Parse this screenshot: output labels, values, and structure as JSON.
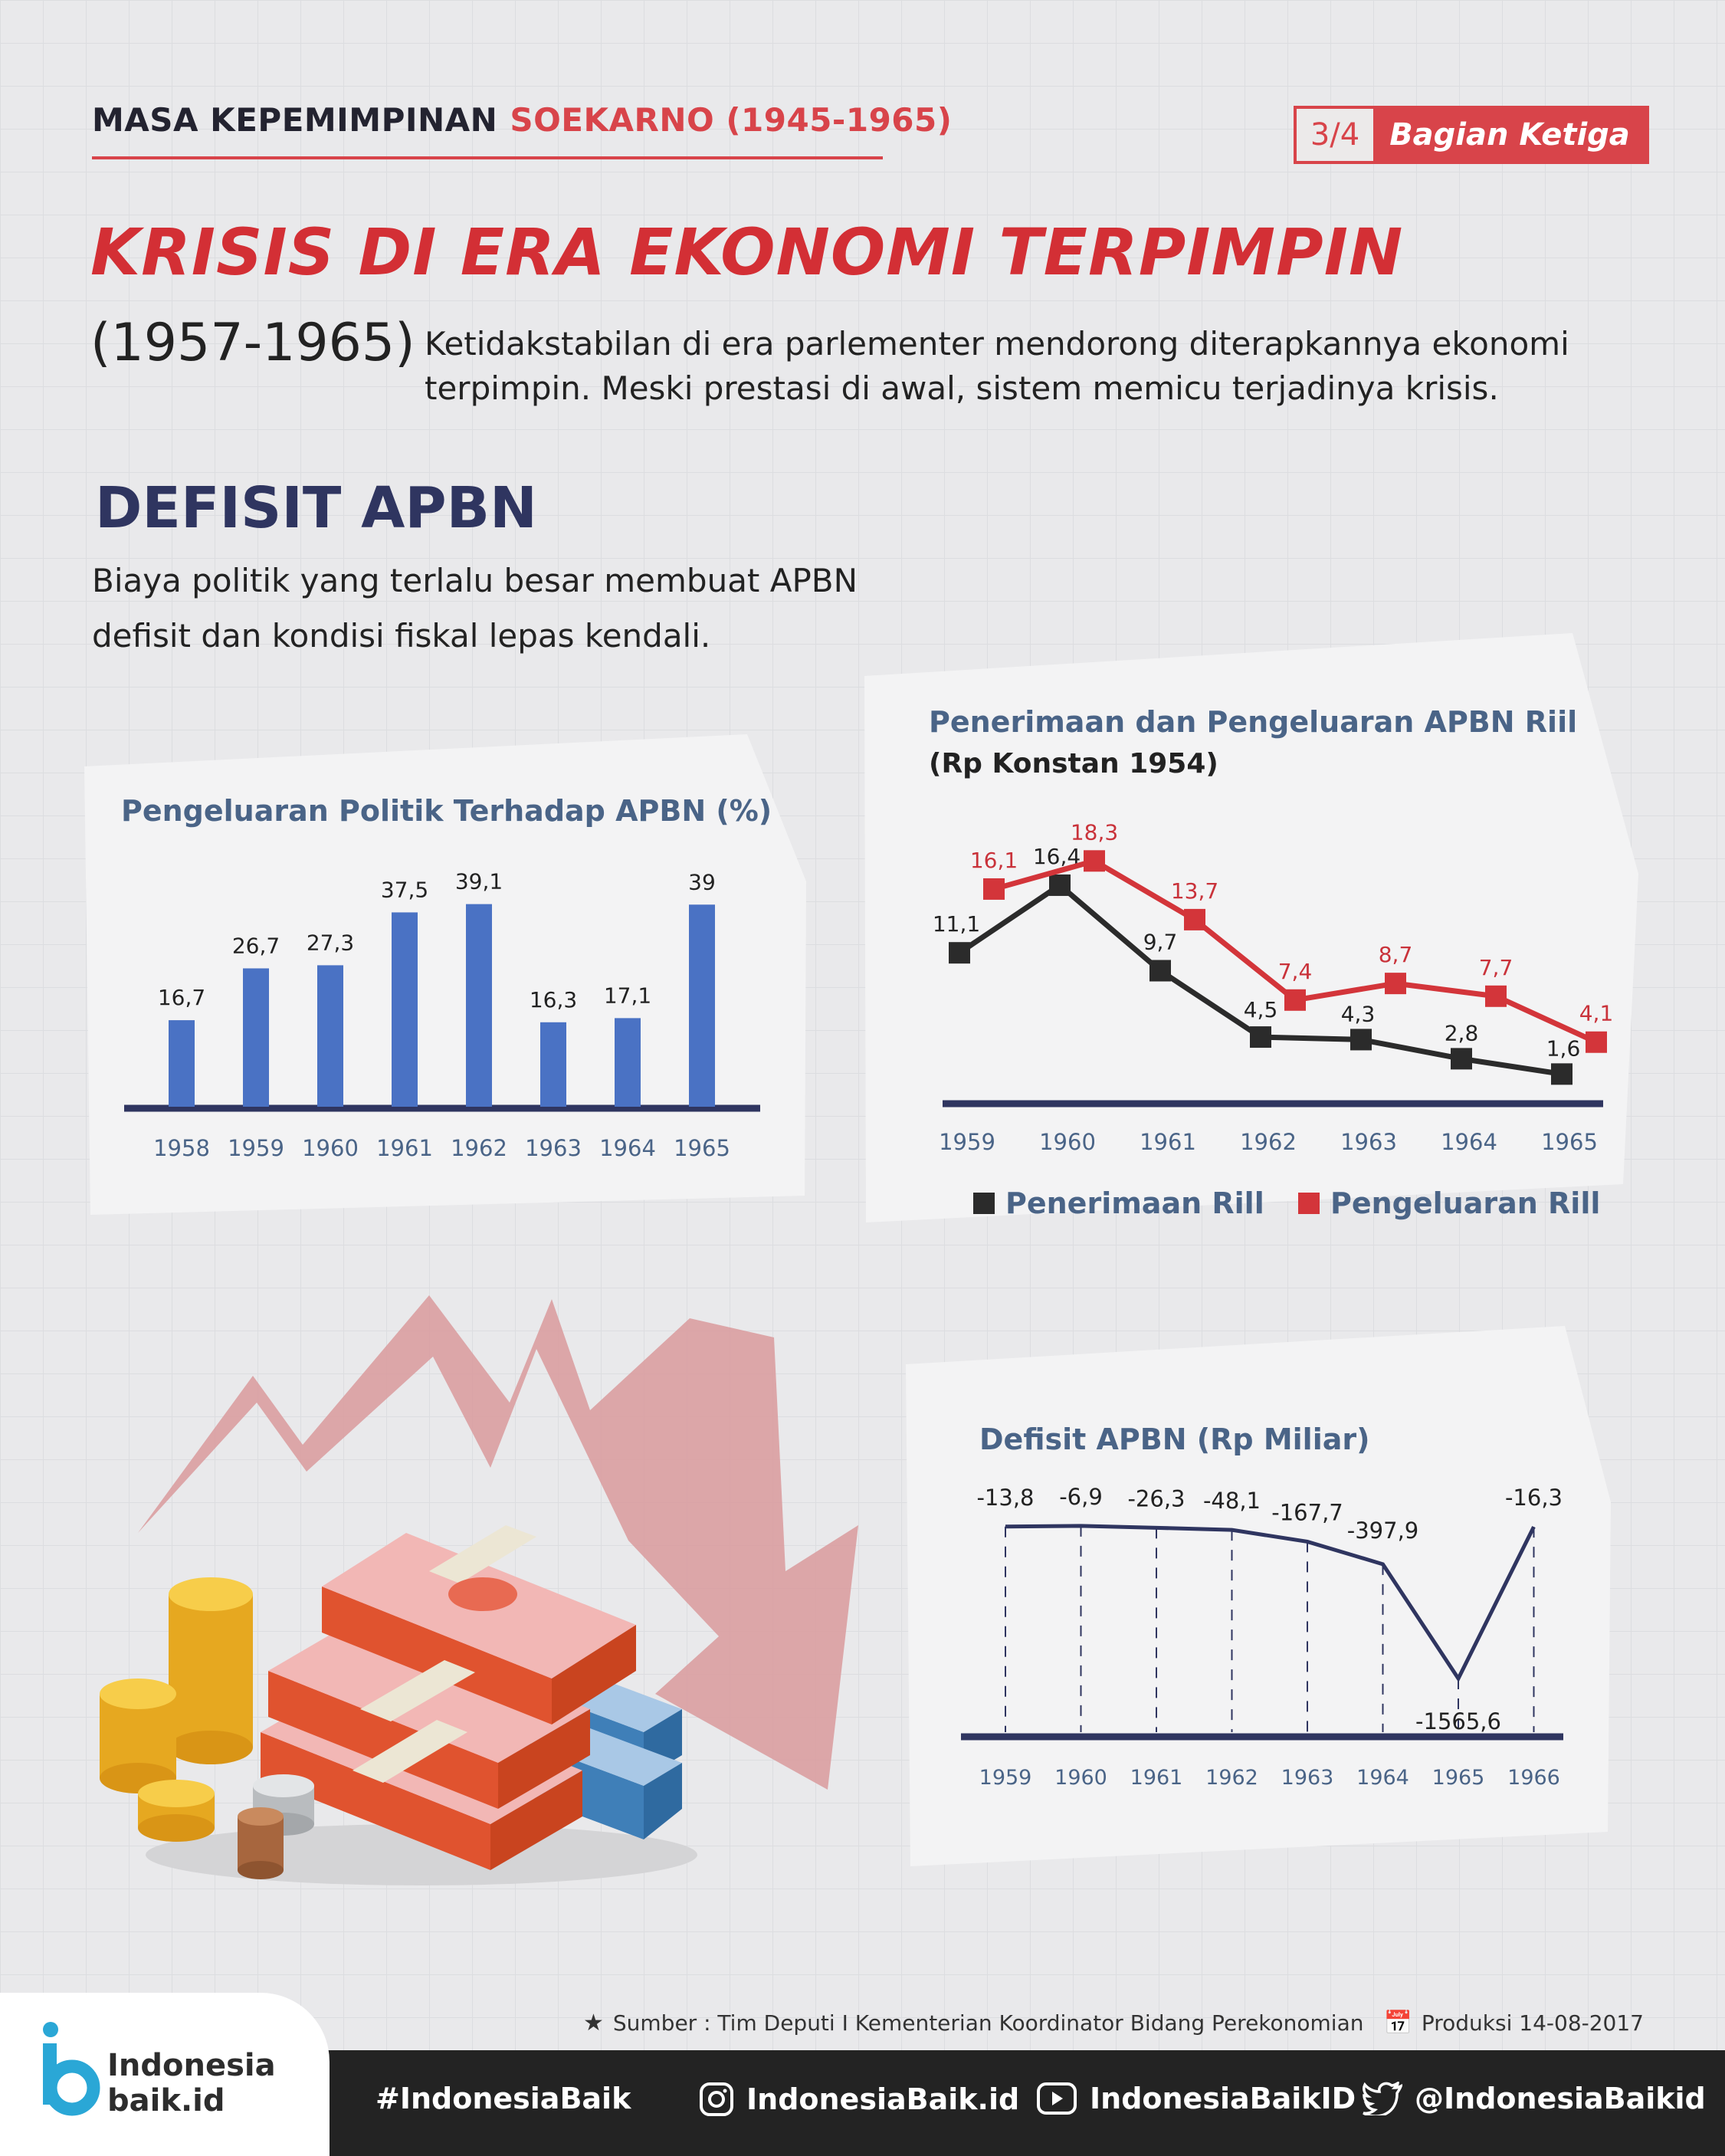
{
  "header": {
    "label": "MASA KEPEMIMPINAN",
    "highlight": "SOEKARNO (1945-1965)",
    "part_number": "3/4",
    "part_label": "Bagian Ketiga"
  },
  "title": "KRISIS DI ERA EKONOMI TERPIMPIN",
  "period": "(1957-1965)",
  "intro": "Ketidakstabilan di era parlementer mendorong diterapkannya ekonomi terpimpin. Meski prestasi di awal, sistem memicu terjadinya krisis.",
  "section": {
    "title": "DEFISIT APBN",
    "description": "Biaya politik yang terlalu besar membuat APBN defisit dan kondisi fiskal lepas kendali."
  },
  "chart_data": [
    {
      "type": "bar",
      "title": "Pengeluaran Politik Terhadap APBN (%)",
      "categories": [
        "1958",
        "1959",
        "1960",
        "1961",
        "1962",
        "1963",
        "1964",
        "1965"
      ],
      "values": [
        16.7,
        26.7,
        27.3,
        37.5,
        39.1,
        16.3,
        17.1,
        39
      ],
      "value_labels": [
        "16,7",
        "26,7",
        "27,3",
        "37,5",
        "39,1",
        "16,3",
        "17,1",
        "39"
      ],
      "color": "#4a72c4",
      "ylim": [
        0,
        42
      ]
    },
    {
      "type": "line",
      "title": "Penerimaan dan Pengeluaran APBN Riil",
      "subtitle": "(Rp Konstan 1954)",
      "x": [
        "1959",
        "1960",
        "1961",
        "1962",
        "1963",
        "1964",
        "1965"
      ],
      "series": [
        {
          "name": "Penerimaan Rill",
          "color": "#2b2b2b",
          "values": [
            11.1,
            16.4,
            9.7,
            4.5,
            4.3,
            2.8,
            1.6
          ],
          "labels": [
            "11,1",
            "16,4",
            "9,7",
            "4,5",
            "4,3",
            "2,8",
            "1,6"
          ]
        },
        {
          "name": "Pengeluaran Rill",
          "color": "#d3353a",
          "values": [
            16.1,
            18.3,
            13.7,
            7.4,
            8.7,
            7.7,
            4.1
          ],
          "labels": [
            "16,1",
            "18,3",
            "13,7",
            "7,4",
            "8,7",
            "7,7",
            "4,1"
          ]
        }
      ],
      "ylim": [
        0,
        20
      ]
    },
    {
      "type": "line",
      "title": "Defisit APBN (Rp Miliar)",
      "x": [
        "1959",
        "1960",
        "1961",
        "1962",
        "1963",
        "1964",
        "1965",
        "1966"
      ],
      "values": [
        -13.8,
        -6.9,
        -26.3,
        -48.1,
        -167.7,
        -397.9,
        -1565.6,
        -16.3
      ],
      "value_labels": [
        "-13,8",
        "-6,9",
        "-26,3",
        "-48,1",
        "-167,7",
        "-397,9",
        "-1565,6",
        "-16,3"
      ],
      "color": "#2f3560"
    }
  ],
  "source": {
    "text": "Sumber : Tim Deputi I Kementerian Koordinator Bidang Perekonomian",
    "production": "Produksi 14-08-2017"
  },
  "footer": {
    "logo_line1": "Indonesia",
    "logo_line2": "baik.id",
    "hashtag": "#IndonesiaBaik",
    "instagram": "IndonesiaBaik.id",
    "youtube": "IndonesiaBaikID",
    "twitter": "@IndonesiaBaikid"
  }
}
